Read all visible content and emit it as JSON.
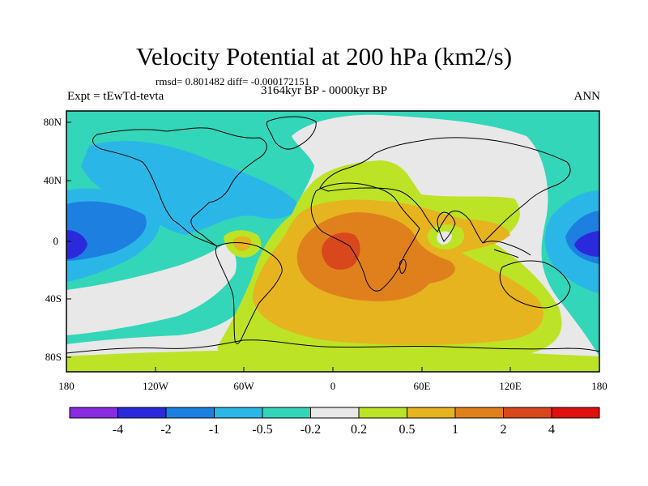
{
  "header": {
    "title": "Velocity Potential at 200 hPa (km2/s)",
    "stats": "rmsd= 0.801482 diff= -0.000172151",
    "experiment": "Expt = tEwTd-tevta",
    "period": "3164kyr BP - 0000kyr BP",
    "season": "ANN"
  },
  "map": {
    "projection": "cylindrical-equidistant",
    "lon_range": [
      -180,
      180
    ],
    "lat_range": [
      -90,
      90
    ],
    "x_ticks": [
      "180",
      "120W",
      "60W",
      "0",
      "60E",
      "120E",
      "180"
    ],
    "y_ticks": [
      "80N",
      "40N",
      "0",
      "40S",
      "80S"
    ]
  },
  "colorbar": {
    "labels": [
      "-4",
      "-2",
      "-1",
      "-0.5",
      "-0.2",
      "0.2",
      "0.5",
      "1",
      "2",
      "4"
    ],
    "colors": [
      "#8a2be2",
      "#2a2adc",
      "#1d7fe0",
      "#2ab7e8",
      "#33d6b8",
      "#e8e8e8",
      "#bde326",
      "#e6b41e",
      "#e0801c",
      "#d8481c",
      "#e01010"
    ]
  },
  "colors": {
    "background_field": "#33d6b8",
    "coastline": "#000000"
  }
}
